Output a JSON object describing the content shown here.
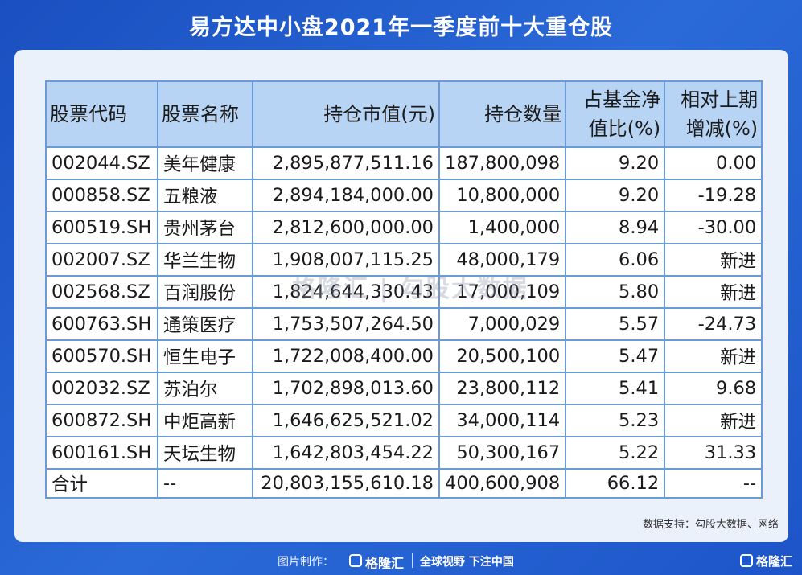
{
  "title": "易方达中小盘2021年一季度前十大重仓股",
  "headers": {
    "code": "股票代码",
    "name": "股票名称",
    "market_value": "持仓市值(元)",
    "quantity": "持仓数量",
    "pct_line1": "占基金净",
    "pct_line2": "值比(%)",
    "change_line1": "相对上期",
    "change_line2": "增减(%)"
  },
  "rows": [
    {
      "code": "002044.SZ",
      "name": "美年健康",
      "market_value": "2,895,877,511.16",
      "quantity": "187,800,098",
      "pct": "9.20",
      "change": "0.00"
    },
    {
      "code": "000858.SZ",
      "name": "五粮液",
      "market_value": "2,894,184,000.00",
      "quantity": "10,800,000",
      "pct": "9.20",
      "change": "-19.28"
    },
    {
      "code": "600519.SH",
      "name": "贵州茅台",
      "market_value": "2,812,600,000.00",
      "quantity": "1,400,000",
      "pct": "8.94",
      "change": "-30.00"
    },
    {
      "code": "002007.SZ",
      "name": "华兰生物",
      "market_value": "1,908,007,115.25",
      "quantity": "48,000,179",
      "pct": "6.06",
      "change": "新进"
    },
    {
      "code": "002568.SZ",
      "name": "百润股份",
      "market_value": "1,824,644,330.43",
      "quantity": "17,000,109",
      "pct": "5.80",
      "change": "新进"
    },
    {
      "code": "600763.SH",
      "name": "通策医疗",
      "market_value": "1,753,507,264.50",
      "quantity": "7,000,029",
      "pct": "5.57",
      "change": "-24.73"
    },
    {
      "code": "600570.SH",
      "name": "恒生电子",
      "market_value": "1,722,008,400.00",
      "quantity": "20,500,100",
      "pct": "5.47",
      "change": "新进"
    },
    {
      "code": "002032.SZ",
      "name": "苏泊尔",
      "market_value": "1,702,898,013.60",
      "quantity": "23,800,112",
      "pct": "5.41",
      "change": "9.68"
    },
    {
      "code": "600872.SH",
      "name": "中炬高新",
      "market_value": "1,646,625,521.02",
      "quantity": "34,000,114",
      "pct": "5.23",
      "change": "新进"
    },
    {
      "code": "600161.SH",
      "name": "天坛生物",
      "market_value": "1,642,803,454.22",
      "quantity": "50,300,167",
      "pct": "5.22",
      "change": "31.33"
    },
    {
      "code": "合计",
      "name": "--",
      "market_value": "20,803,155,610.18",
      "quantity": "400,600,908",
      "pct": "66.12",
      "change": "--"
    }
  ],
  "watermark": "格隆汇 | 勾股大数据",
  "source": "数据支持：勾股大数据、网络",
  "footer": {
    "made_by": "图片制作：",
    "logo": "格隆汇",
    "slogan": "全球视野 下注中国",
    "corner_logo": "格隆汇"
  },
  "colors": {
    "background": "#1f5bcc",
    "card": "#eaf1fb",
    "header_fill": "#b8d4f4",
    "border": "#6a9bd9"
  }
}
